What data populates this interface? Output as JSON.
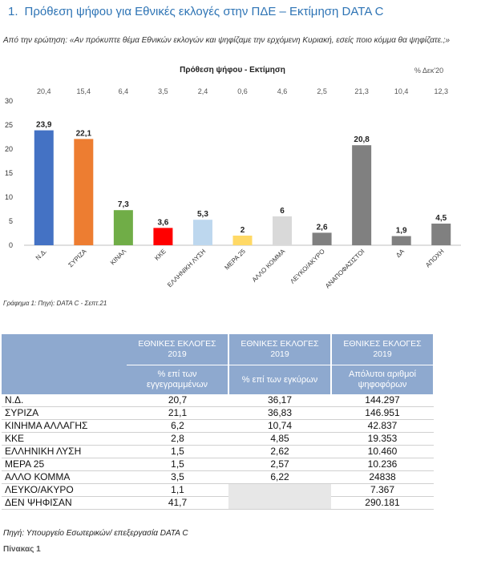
{
  "heading": {
    "number": "1.",
    "text": "Πρόθεση ψήφου για Εθνικές εκλογές στην ΠΔΕ – Εκτίμηση DATA C"
  },
  "intro": "Από την ερώτηση: «Αν πρόκυπτε θέμα Εθνικών εκλογών και ψηφίζαμε την ερχόμενη Κυριακή, εσείς ποιο κόμμα θα ψηφίζατε.;»",
  "chart_data": {
    "type": "bar",
    "title": "Πρόθεση ψήφου - Εκτίμηση",
    "period_label": "% Δεκ'20",
    "categories": [
      "Ν.Δ.",
      "ΣΥΡΙΖΑ",
      "ΚΙΝΑΛ",
      "ΚΚΕ",
      "ΕΛΛΗΝΙΚΗ ΛΥΣΗ",
      "ΜΕΡΑ 25",
      "ΑΛΛΟ ΚΟΜΜΑ",
      "ΛΕΥΚΟ/ΑΚΥΡΟ",
      "ΑΝΑΠΟΦΑΣΙΣΤΟΙ",
      "ΔΑ",
      "ΑΠΟΧΗ"
    ],
    "values": [
      23.9,
      22.1,
      7.3,
      3.6,
      5.3,
      2,
      6,
      2.6,
      20.8,
      1.9,
      4.5
    ],
    "value_labels": [
      "23,9",
      "22,1",
      "7,3",
      "3,6",
      "5,3",
      "2",
      "6",
      "2,6",
      "20,8",
      "1,9",
      "4,5"
    ],
    "previous_labels": [
      "20,4",
      "15,4",
      "6,4",
      "3,5",
      "2,4",
      "0,6",
      "4,6",
      "2,5",
      "21,3",
      "10,4",
      "12,3"
    ],
    "colors": [
      "#4472c4",
      "#ed7d31",
      "#70ad47",
      "#ff0000",
      "#bdd7ee",
      "#ffd966",
      "#d9d9d9",
      "#808080",
      "#808080",
      "#808080",
      "#808080"
    ],
    "ylim": [
      0,
      30
    ],
    "yticks": [
      0,
      5,
      10,
      15,
      20,
      25,
      30
    ],
    "xlabel": "",
    "ylabel": "",
    "grid": false
  },
  "chart_caption": "Γράφημα 1: Πηγή: DATA C - Σεπτ.21",
  "table": {
    "group_headers": [
      "ΕΘΝΙΚΕΣ ΕΚΛΟΓΕΣ 2019",
      "ΕΘΝΙΚΕΣ ΕΚΛΟΓΕΣ 2019",
      "ΕΘΝΙΚΕΣ ΕΚΛΟΓΕΣ 2019"
    ],
    "sub_headers": [
      "% επί των εγγεγραμμένων",
      "% επί των εγκύρων",
      "Απόλυτοι αριθμοί ψηφοφόρων"
    ],
    "rows": [
      {
        "label": "Ν.Δ.",
        "cells": [
          "20,7",
          "36,17",
          "144.297"
        ]
      },
      {
        "label": "ΣΥΡΙΖΑ",
        "cells": [
          "21,1",
          "36,83",
          "146.951"
        ]
      },
      {
        "label": "ΚΙΝΗΜΑ ΑΛΛΑΓΗΣ",
        "cells": [
          "6,2",
          "10,74",
          "42.837"
        ]
      },
      {
        "label": "ΚΚΕ",
        "cells": [
          "2,8",
          "4,85",
          "19.353"
        ]
      },
      {
        "label": "ΕΛΛΗΝΙΚΗ ΛΥΣΗ",
        "cells": [
          "1,5",
          "2,62",
          "10.460"
        ]
      },
      {
        "label": "ΜΕΡΑ 25",
        "cells": [
          "1,5",
          "2,57",
          "10.236"
        ]
      },
      {
        "label": "ΑΛΛΟ ΚΟΜΜΑ",
        "cells": [
          "3,5",
          "6,22",
          "24838"
        ]
      },
      {
        "label": "ΛΕΥΚΟ/ΑΚΥΡΟ",
        "cells": [
          "1,1",
          "",
          "7.367"
        ]
      },
      {
        "label": "ΔΕΝ ΨΗΦΙΣΑΝ",
        "cells": [
          "41,7",
          "",
          "290.181"
        ]
      }
    ],
    "source": "Πηγή: Υπουργείο Εσωτερικών/ επεξεργασία DATA C",
    "caption": "Πίνακας 1"
  }
}
